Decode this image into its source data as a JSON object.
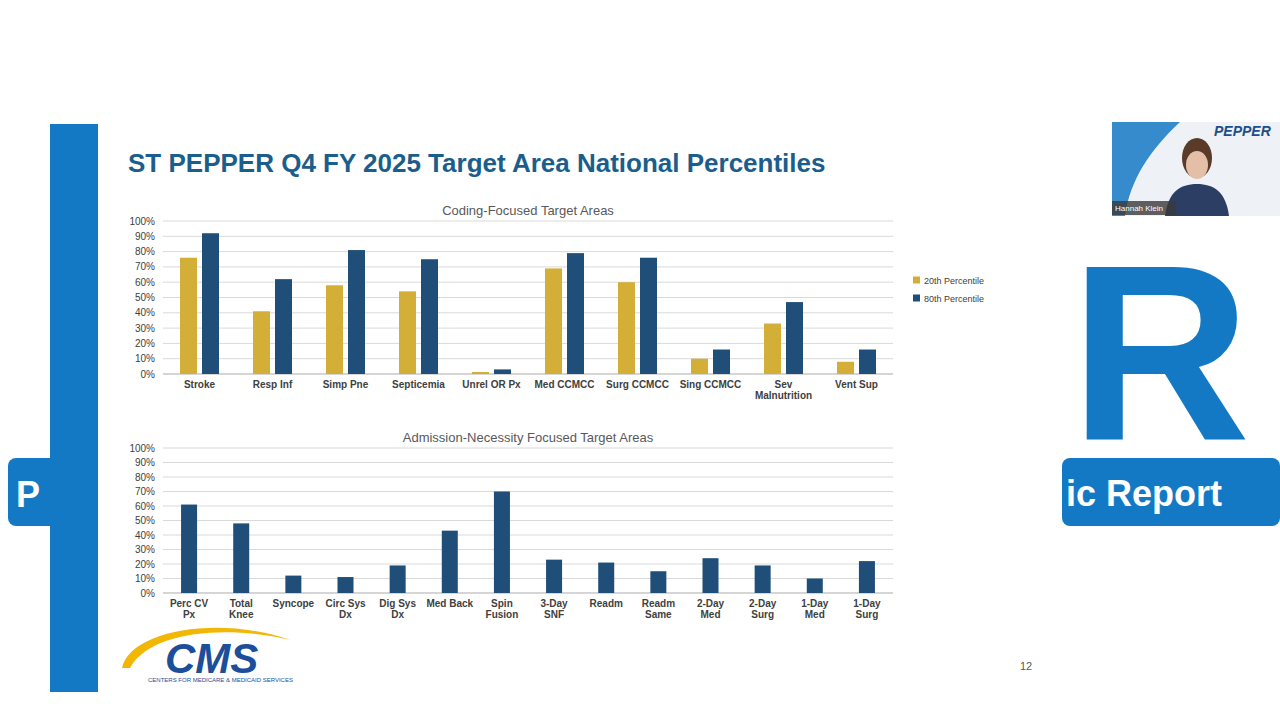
{
  "slide": {
    "title": "ST PEPPER Q4 FY 2025 Target Area National Percentiles",
    "page": "12",
    "cms_logo": "CMS",
    "cms_subtitle": "CENTERS FOR MEDICARE & MEDICAID SERVICES",
    "presenter": "Hannah Klein",
    "brand": "PEPPER",
    "background_texts": [
      "R",
      "ic Report",
      "P"
    ]
  },
  "chart_data": [
    {
      "type": "bar",
      "title": "Coding-Focused Target Areas",
      "categories": [
        "Stroke",
        "Resp Inf",
        "Simp Pne",
        "Septicemia",
        "Unrel OR Px",
        "Med CCMCC",
        "Surg CCMCC",
        "Sing CCMCC",
        "Sev Malnutrition",
        "Vent Sup"
      ],
      "series": [
        {
          "name": "20th Percentile",
          "color": "#D4AF37",
          "values": [
            76,
            41,
            58,
            54,
            1.3,
            69,
            60,
            10,
            33,
            8
          ]
        },
        {
          "name": "80th Percentile",
          "color": "#1F4E79",
          "values": [
            92,
            62,
            81,
            75,
            3,
            79,
            76,
            16,
            47,
            16
          ]
        }
      ],
      "ylim": [
        0,
        100
      ],
      "yticks": [
        {
          "value": 0,
          "label": "0%"
        },
        {
          "value": 10,
          "label": "10%"
        },
        {
          "value": 20,
          "label": "20%"
        },
        {
          "value": 30,
          "label": "30%"
        },
        {
          "value": 40,
          "label": "40%"
        },
        {
          "value": 50,
          "label": "50%"
        },
        {
          "value": 60,
          "label": "60%"
        },
        {
          "value": 70,
          "label": "70%"
        },
        {
          "value": 80,
          "label": "80%"
        },
        {
          "value": 90,
          "label": "90%"
        },
        {
          "value": 100,
          "label": "100%"
        }
      ],
      "grid": true,
      "legend": "right"
    },
    {
      "type": "bar",
      "title": "Admission-Necessity Focused Target Areas",
      "categories": [
        "Perc CV Px",
        "Total Knee",
        "Syncope",
        "Circ Sys Dx",
        "Dig Sys Dx",
        "Med Back",
        "Spin Fusion",
        "3-Day SNF",
        "Readm",
        "Readm Same",
        "2-Day Med",
        "2-Day Surg",
        "1-Day Med",
        "1-Day Surg"
      ],
      "values": [
        61,
        48,
        12,
        11,
        19,
        43,
        70,
        23,
        21,
        15,
        24,
        19,
        10,
        22
      ],
      "color": "#1F4E79",
      "ylim": [
        0,
        100
      ],
      "yticks": [
        {
          "value": 0,
          "label": "0%"
        },
        {
          "value": 10,
          "label": "10%"
        },
        {
          "value": 20,
          "label": "20%"
        },
        {
          "value": 30,
          "label": "30%"
        },
        {
          "value": 40,
          "label": "40%"
        },
        {
          "value": 50,
          "label": "50%"
        },
        {
          "value": 60,
          "label": "60%"
        },
        {
          "value": 70,
          "label": "70%"
        },
        {
          "value": 80,
          "label": "80%"
        },
        {
          "value": 90,
          "label": "90%"
        },
        {
          "value": 100,
          "label": "100%"
        }
      ],
      "grid": true
    }
  ]
}
